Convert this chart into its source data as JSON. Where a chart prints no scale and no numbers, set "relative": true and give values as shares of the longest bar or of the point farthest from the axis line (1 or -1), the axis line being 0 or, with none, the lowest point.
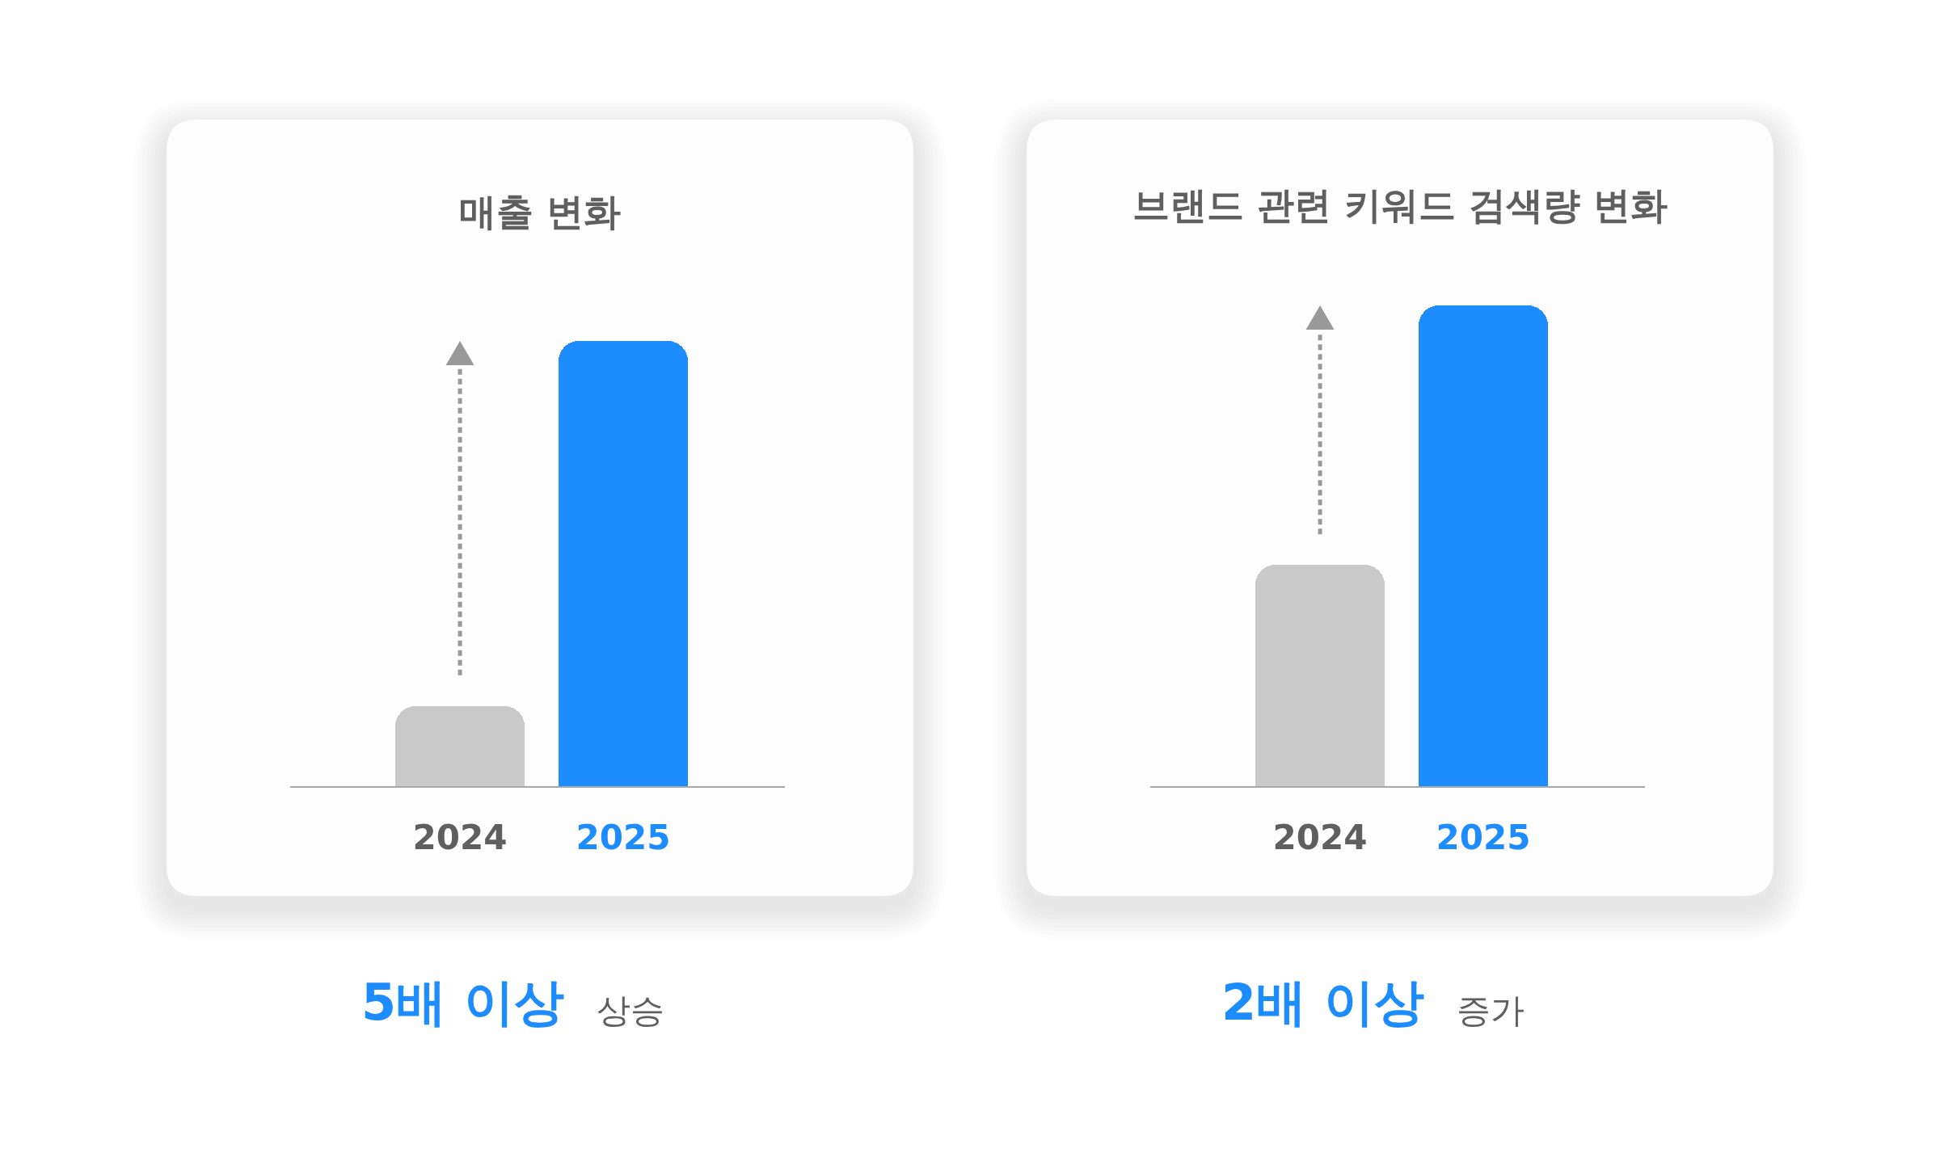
{
  "chart_data": [
    {
      "type": "bar",
      "title": "매출 변화",
      "categories": [
        "2024",
        "2025"
      ],
      "values": [
        0.18,
        1
      ],
      "colors": [
        "#c9c9c9",
        "#1c8cff"
      ],
      "relative": true,
      "annotations": [
        "5배 이상",
        "상승"
      ]
    },
    {
      "type": "bar",
      "title": "브랜드 관련 키워드 검색량 변화",
      "categories": [
        "2024",
        "2025"
      ],
      "values": [
        0.46,
        1
      ],
      "colors": [
        "#c9c9c9",
        "#1c8cff"
      ],
      "relative": true,
      "annotations": [
        "2배 이상",
        "증가"
      ]
    }
  ]
}
